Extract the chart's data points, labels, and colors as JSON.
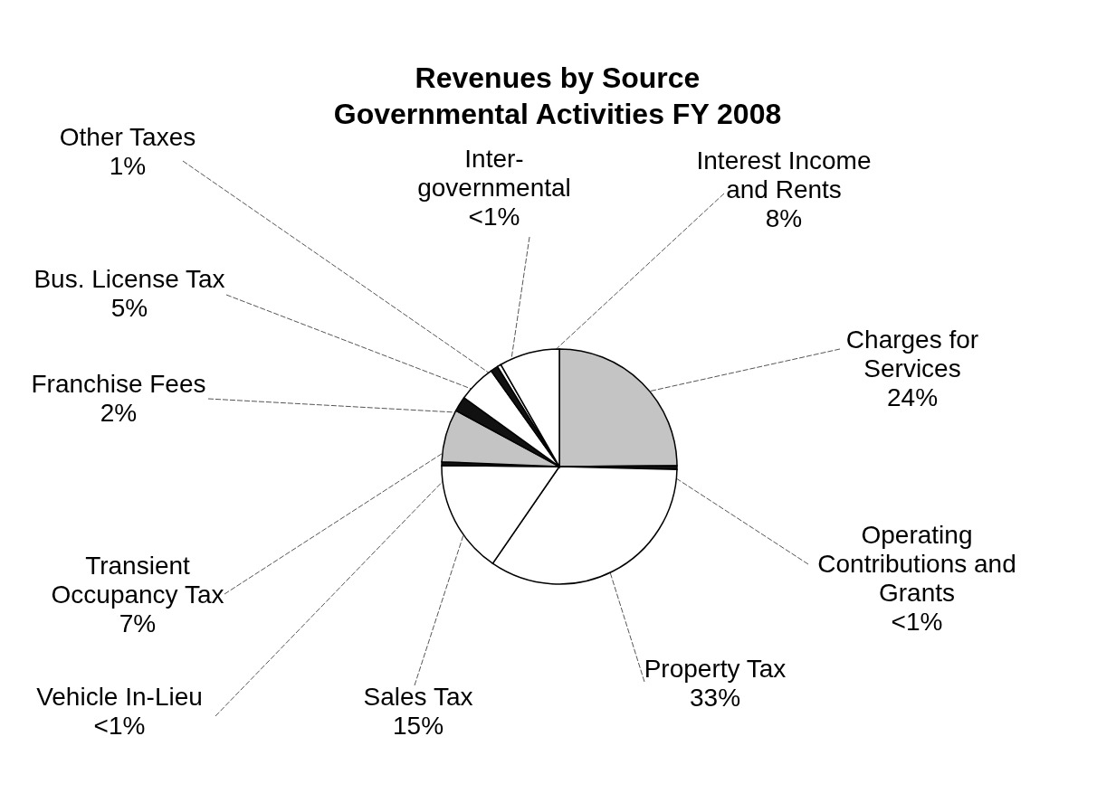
{
  "chart_data": {
    "type": "pie",
    "title": "Revenues by Source",
    "subtitle": "Governmental Activities FY 2008",
    "categories": [
      "Charges for\nServices",
      "Operating\nContributions and\nGrants",
      "Property Tax",
      "Sales Tax",
      "Vehicle In-Lieu",
      "Transient\nOccupancy Tax",
      "Franchise Fees",
      "Bus. License Tax",
      "Other Taxes",
      "Inter-\ngovernmental",
      "Interest Income\nand Rents"
    ],
    "values": [
      24,
      0.5,
      33,
      15,
      0.5,
      7,
      2,
      5,
      1,
      0.5,
      8
    ],
    "value_labels": [
      "24%",
      "<1%",
      "33%",
      "15%",
      "<1%",
      "7%",
      "2%",
      "5%",
      "1%",
      "<1%",
      "8%"
    ],
    "colors": [
      "#c4c4c4",
      "#111111",
      "#ffffff",
      "#ffffff",
      "#111111",
      "#c4c4c4",
      "#111111",
      "#ffffff",
      "#111111",
      "#ffffff",
      "#ffffff"
    ]
  }
}
